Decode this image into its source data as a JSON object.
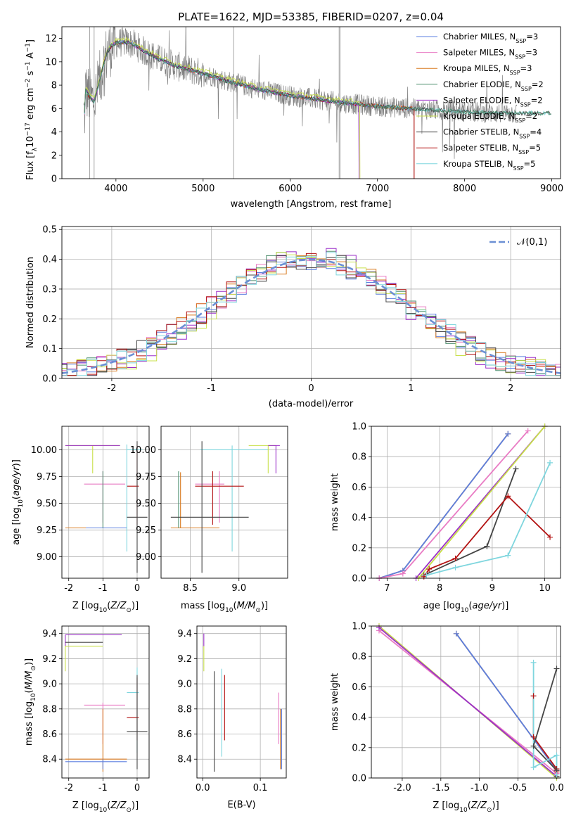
{
  "title": "PLATE=1622, MJD=53385, FIBERID=0207, z=0.04",
  "colors": {
    "chabrier_miles": "#5b7fe0",
    "salpeter_miles": "#e97cc4",
    "kroupa_miles": "#d97a1f",
    "chabrier_elodie": "#4f8f6f",
    "salpeter_elodie": "#9b2fc9",
    "kroupa_elodie": "#c8e04a",
    "chabrier_stelib": "#454545",
    "salpeter_stelib": "#b31212",
    "kroupa_stelib": "#7fd6de",
    "normal": "#6b8fd4",
    "data": "#808080"
  },
  "legend1": [
    {
      "key": "chabrier_miles",
      "pre": "Chabrier MILES, N",
      "sub": "SSP",
      "post": "=3"
    },
    {
      "key": "salpeter_miles",
      "pre": "Salpeter MILES, N",
      "sub": "SSP",
      "post": "=3"
    },
    {
      "key": "kroupa_miles",
      "pre": "Kroupa MILES, N",
      "sub": "SSP",
      "post": "=3"
    },
    {
      "key": "chabrier_elodie",
      "pre": "Chabrier ELODIE, N",
      "sub": "SSP",
      "post": "=2"
    },
    {
      "key": "salpeter_elodie",
      "pre": "Salpeter ELODIE, N",
      "sub": "SSP",
      "post": "=2"
    },
    {
      "key": "kroupa_elodie",
      "pre": "Kroupa ELODIE, N",
      "sub": "SSP",
      "post": "=2"
    },
    {
      "key": "chabrier_stelib",
      "pre": "Chabrier STELIB, N",
      "sub": "SSP",
      "post": "=4"
    },
    {
      "key": "salpeter_stelib",
      "pre": "Salpeter STELIB, N",
      "sub": "SSP",
      "post": "=5"
    },
    {
      "key": "kroupa_stelib",
      "pre": "Kroupa STELIB, N",
      "sub": "SSP",
      "post": "=5"
    }
  ],
  "chart_data": [
    {
      "type": "line",
      "xlabel": "wavelength [Angstrom, rest frame]",
      "ylabel": "Flux [f",
      "ylabel_full": "Flux [fλ10⁻¹⁷ erg cm⁻² s⁻¹ A⁻¹]",
      "xlim": [
        3380,
        9100
      ],
      "ylim": [
        0,
        13
      ],
      "xticks": [
        4000,
        5000,
        6000,
        7000,
        8000,
        9000
      ],
      "yticks": [
        0,
        2,
        4,
        6,
        8,
        10,
        12
      ],
      "model_curve": {
        "x": [
          3650,
          3700,
          3750,
          3800,
          3850,
          3900,
          3950,
          4000,
          4100,
          4200,
          4300,
          4400,
          4500,
          4700,
          5000,
          5300,
          5600,
          6000,
          6300,
          6600,
          7000,
          7400,
          7800,
          8100,
          8400
        ],
        "y": [
          7.6,
          7.0,
          6.6,
          8.0,
          9.5,
          10.8,
          11.4,
          11.6,
          11.7,
          11.5,
          11.0,
          10.6,
          10.2,
          9.6,
          9.0,
          8.3,
          7.7,
          7.1,
          6.8,
          6.5,
          6.2,
          6.0,
          5.8,
          5.7,
          5.6
        ]
      },
      "model_ends": {
        "chabrier_miles": 7420,
        "salpeter_miles": 7420,
        "kroupa_miles": 7420,
        "salpeter_stelib": 7420,
        "kroupa_elodie": 6800,
        "salpeter_elodie": 6790,
        "kroupa_stelib": 9000,
        "chabrier_stelib": 9000,
        "chabrier_elodie": 9000
      }
    },
    {
      "type": "histogram",
      "xlabel": "(data-model)/error",
      "ylabel": "Normed distribution",
      "xlim": [
        -2.5,
        2.5
      ],
      "ylim": [
        0,
        0.51
      ],
      "xticks": [
        -2,
        -1,
        0,
        1,
        2
      ],
      "yticks": [
        0.0,
        0.1,
        0.2,
        0.3,
        0.4,
        0.5
      ],
      "normal_label": "𝒩(0,1)"
    },
    {
      "type": "errorbar",
      "name": "age vs Z",
      "xlabel": "Z [log10(Z/Z☉)]",
      "ylabel": "age  [log10(age/yr)]",
      "xlim": [
        -2.2,
        0.35
      ],
      "ylim": [
        8.8,
        10.22
      ],
      "xticks": [
        -2,
        -1,
        0
      ],
      "yticks": [
        9.0,
        9.25,
        9.5,
        9.75,
        10.0
      ],
      "points": [
        {
          "key": "kroupa_elodie",
          "x": -1.3,
          "xlo": -2.1,
          "xhi": -0.5,
          "y": 10.04,
          "ylo": 9.78,
          "yhi": 10.04
        },
        {
          "key": "salpeter_elodie",
          "x": -1.3,
          "xlo": -2.1,
          "xhi": -0.5,
          "y": 10.04,
          "ylo": 10.04,
          "yhi": 10.04
        },
        {
          "key": "salpeter_miles",
          "x": -1.0,
          "xlo": -1.55,
          "xhi": -0.35,
          "y": 9.68,
          "ylo": 9.32,
          "yhi": 9.8
        },
        {
          "key": "kroupa_miles",
          "x": -1.0,
          "xlo": -2.1,
          "xhi": -0.3,
          "y": 9.27,
          "ylo": 9.27,
          "yhi": 9.27
        },
        {
          "key": "chabrier_miles",
          "x": -1.0,
          "xlo": -1.5,
          "xhi": -0.3,
          "y": 9.27,
          "ylo": 9.27,
          "yhi": 9.27
        },
        {
          "key": "chabrier_elodie",
          "x": -1.0,
          "xlo": -1.0,
          "xhi": -1.0,
          "y": 9.27,
          "ylo": 9.27,
          "yhi": 9.8
        },
        {
          "key": "salpeter_stelib",
          "x": 0.0,
          "xlo": -0.3,
          "xhi": 0.05,
          "y": 9.66,
          "ylo": 9.3,
          "yhi": 10.05
        },
        {
          "key": "kroupa_stelib",
          "x": -0.3,
          "xlo": -0.3,
          "xhi": 0.15,
          "y": 10.0,
          "ylo": 9.05,
          "yhi": 10.05
        },
        {
          "key": "chabrier_stelib",
          "x": 0.0,
          "xlo": -0.3,
          "xhi": 0.3,
          "y": 9.37,
          "ylo": 8.85,
          "yhi": 10.08
        }
      ]
    },
    {
      "type": "errorbar",
      "name": "age vs mass",
      "xlabel": "mass [log10(M/M☉)]",
      "ylabel": "",
      "xlim": [
        8.2,
        9.5
      ],
      "ylim": [
        8.8,
        10.22
      ],
      "xticks": [
        8.5,
        9.0
      ],
      "yticks": [
        9.0,
        9.25,
        9.5,
        9.75,
        10.0
      ],
      "points": [
        {
          "key": "kroupa_stelib",
          "x": 8.93,
          "xlo": 8.6,
          "xhi": 9.3,
          "y": 10.0,
          "ylo": 9.05,
          "yhi": 10.04
        },
        {
          "key": "kroupa_elodie",
          "x": 9.3,
          "xlo": 9.1,
          "xhi": 9.38,
          "y": 10.04,
          "ylo": 9.78,
          "yhi": 10.04
        },
        {
          "key": "salpeter_elodie",
          "x": 9.38,
          "xlo": 9.3,
          "xhi": 9.42,
          "y": 10.04,
          "ylo": 9.78,
          "yhi": 10.04
        },
        {
          "key": "salpeter_miles",
          "x": 8.8,
          "xlo": 8.55,
          "xhi": 8.85,
          "y": 9.68,
          "ylo": 9.32,
          "yhi": 9.8
        },
        {
          "key": "salpeter_stelib",
          "x": 8.73,
          "xlo": 8.55,
          "xhi": 9.05,
          "y": 9.66,
          "ylo": 9.3,
          "yhi": 9.8
        },
        {
          "key": "kroupa_miles",
          "x": 8.4,
          "xlo": 8.3,
          "xhi": 8.8,
          "y": 9.27,
          "ylo": 9.27,
          "yhi": 9.79
        },
        {
          "key": "chabrier_elodie",
          "x": 8.38,
          "xlo": 8.38,
          "xhi": 8.38,
          "y": 9.27,
          "ylo": 9.27,
          "yhi": 9.8
        },
        {
          "key": "chabrier_stelib",
          "x": 8.62,
          "xlo": 8.3,
          "xhi": 9.1,
          "y": 9.37,
          "ylo": 8.85,
          "yhi": 10.08
        }
      ]
    },
    {
      "type": "line",
      "name": "mass weight vs age",
      "xlabel": "age  [log10(age/yr)]",
      "ylabel": "mass weight",
      "xlim": [
        6.7,
        10.3
      ],
      "ylim": [
        0,
        1
      ],
      "xticks": [
        7,
        8,
        9,
        10
      ],
      "yticks": [
        0.0,
        0.2,
        0.4,
        0.6,
        0.8,
        1.0
      ],
      "series": [
        {
          "key": "kroupa_miles",
          "x": [
            6.85,
            7.3,
            9.3
          ],
          "y": [
            0.0,
            0.05,
            0.95
          ]
        },
        {
          "key": "chabrier_miles",
          "x": [
            6.85,
            7.3,
            9.3
          ],
          "y": [
            0.0,
            0.05,
            0.95
          ]
        },
        {
          "key": "salpeter_miles",
          "x": [
            6.85,
            7.3,
            9.68
          ],
          "y": [
            0.0,
            0.03,
            0.97
          ]
        },
        {
          "key": "salpeter_elodie",
          "x": [
            7.55,
            10.0
          ],
          "y": [
            0.0,
            1.0
          ]
        },
        {
          "key": "kroupa_elodie",
          "x": [
            7.6,
            10.0
          ],
          "y": [
            0.0,
            1.0
          ]
        },
        {
          "key": "chabrier_stelib",
          "x": [
            7.7,
            8.9,
            9.45
          ],
          "y": [
            0.02,
            0.21,
            0.72
          ]
        },
        {
          "key": "salpeter_stelib",
          "x": [
            7.7,
            7.8,
            8.3,
            9.3,
            10.1
          ],
          "y": [
            0.01,
            0.06,
            0.13,
            0.54,
            0.27
          ]
        },
        {
          "key": "kroupa_stelib",
          "x": [
            7.75,
            8.3,
            9.3,
            10.1
          ],
          "y": [
            0.02,
            0.07,
            0.15,
            0.76
          ]
        }
      ]
    },
    {
      "type": "errorbar",
      "name": "mass vs Z",
      "xlabel": "Z [log10(Z/Z☉)]",
      "ylabel": "mass [log10(M/M☉)]",
      "xlim": [
        -2.2,
        0.35
      ],
      "ylim": [
        8.25,
        9.46
      ],
      "xticks": [
        -2,
        -1,
        0
      ],
      "yticks": [
        8.4,
        8.6,
        8.8,
        9.0,
        9.2,
        9.4
      ],
      "points": [
        {
          "key": "salpeter_elodie",
          "x": -2.1,
          "xlo": -2.1,
          "xhi": -0.45,
          "y": 9.39,
          "ylo": 9.3,
          "yhi": 9.39
        },
        {
          "key": "chabrier_stelib",
          "x": -2.1,
          "xlo": -2.1,
          "xhi": -1.0,
          "y": 9.33,
          "ylo": 9.33,
          "yhi": 9.33
        },
        {
          "key": "kroupa_elodie",
          "x": -2.1,
          "xlo": -2.1,
          "xhi": -1.0,
          "y": 9.3,
          "ylo": 9.1,
          "yhi": 9.3
        },
        {
          "key": "salpeter_miles",
          "x": -1.0,
          "xlo": -1.55,
          "xhi": -0.35,
          "y": 8.83,
          "ylo": 8.52,
          "yhi": 8.85
        },
        {
          "key": "kroupa_miles",
          "x": -1.0,
          "xlo": -2.1,
          "xhi": -0.3,
          "y": 8.4,
          "ylo": 8.3,
          "yhi": 8.8
        },
        {
          "key": "chabrier_miles",
          "x": -1.0,
          "xlo": -2.1,
          "xhi": -0.3,
          "y": 8.38,
          "ylo": 8.32,
          "yhi": 8.4
        },
        {
          "key": "kroupa_stelib",
          "x": 0.0,
          "xlo": -0.3,
          "xhi": 0.05,
          "y": 8.93,
          "ylo": 8.45,
          "yhi": 9.13
        },
        {
          "key": "salpeter_stelib",
          "x": 0.0,
          "xlo": -0.3,
          "xhi": 0.05,
          "y": 8.73,
          "ylo": 8.55,
          "yhi": 9.05
        },
        {
          "key": "chabrier_stelib",
          "x": 0.0,
          "xlo": -0.3,
          "xhi": 0.3,
          "y": 8.62,
          "ylo": 8.32,
          "yhi": 9.07
        }
      ]
    },
    {
      "type": "errorbar",
      "name": "mass vs E(B-V)",
      "xlabel": "E(B-V)",
      "ylabel": "",
      "xlim": [
        -0.01,
        0.145
      ],
      "ylim": [
        8.25,
        9.46
      ],
      "xticks": [
        0.0,
        0.1
      ],
      "yticks": [
        8.4,
        8.6,
        8.8,
        9.0,
        9.2,
        9.4
      ],
      "points": [
        {
          "key": "salpeter_elodie",
          "x": 0.002,
          "ylo": 9.3,
          "yhi": 9.4
        },
        {
          "key": "kroupa_elodie",
          "x": 0.002,
          "ylo": 9.1,
          "yhi": 9.3
        },
        {
          "key": "chabrier_stelib",
          "x": 0.02,
          "ylo": 8.3,
          "yhi": 9.1
        },
        {
          "key": "kroupa_stelib",
          "x": 0.033,
          "ylo": 8.42,
          "yhi": 9.12
        },
        {
          "key": "salpeter_stelib",
          "x": 0.038,
          "ylo": 8.55,
          "yhi": 9.07
        },
        {
          "key": "salpeter_miles",
          "x": 0.132,
          "ylo": 8.52,
          "yhi": 8.93
        },
        {
          "key": "kroupa_miles",
          "x": 0.135,
          "ylo": 8.32,
          "yhi": 8.8
        },
        {
          "key": "chabrier_miles",
          "x": 0.137,
          "ylo": 8.32,
          "yhi": 8.8
        }
      ]
    },
    {
      "type": "line",
      "name": "mass weight vs Z",
      "xlabel": "Z [log10(Z/Z☉)]",
      "ylabel": "mass weight",
      "xlim": [
        -2.4,
        0.05
      ],
      "ylim": [
        0,
        1
      ],
      "xticks": [
        -2.0,
        -1.5,
        -1.0,
        -0.5,
        0.0
      ],
      "yticks": [
        0.0,
        0.2,
        0.4,
        0.6,
        0.8,
        1.0
      ],
      "series": [
        {
          "key": "salpeter_miles",
          "x": [
            -2.3,
            0.0
          ],
          "y": [
            0.97,
            0.03
          ]
        },
        {
          "key": "kroupa_elodie",
          "x": [
            -2.3,
            0.0
          ],
          "y": [
            1.0,
            0.0
          ]
        },
        {
          "key": "salpeter_elodie",
          "x": [
            -2.3,
            0.0
          ],
          "y": [
            0.99,
            0.01
          ]
        },
        {
          "key": "kroupa_miles",
          "x": [
            -1.3,
            0.0
          ],
          "y": [
            0.95,
            0.05
          ]
        },
        {
          "key": "chabrier_miles",
          "x": [
            -1.3,
            0.0
          ],
          "y": [
            0.95,
            0.05
          ]
        },
        {
          "key": "salpeter_stelib",
          "x": [
            -0.3,
            -0.3,
            0.0,
            0.0
          ],
          "y": [
            0.54,
            0.27,
            0.06,
            0.04
          ]
        },
        {
          "key": "chabrier_stelib",
          "x": [
            0.0,
            -0.3,
            0.0,
            0.0
          ],
          "y": [
            0.72,
            0.21,
            0.05,
            0.01
          ]
        },
        {
          "key": "kroupa_stelib",
          "x": [
            -0.3,
            -0.3,
            0.0,
            0.0
          ],
          "y": [
            0.76,
            0.07,
            0.15,
            0.02
          ]
        }
      ]
    }
  ]
}
